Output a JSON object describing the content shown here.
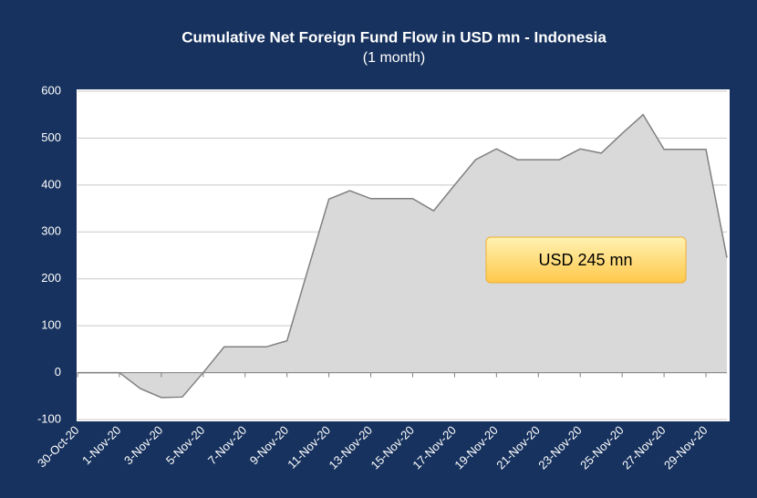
{
  "chart_data": {
    "type": "area",
    "title": "Cumulative Net Foreign Fund Flow in USD mn -  Indonesia",
    "subtitle": "(1 month)",
    "annotation": "USD 245 mn",
    "categories": [
      "30-Oct-20",
      null,
      "1-Nov-20",
      null,
      "3-Nov-20",
      null,
      "5-Nov-20",
      null,
      "7-Nov-20",
      null,
      "9-Nov-20",
      null,
      "11-Nov-20",
      null,
      "13-Nov-20",
      null,
      "15-Nov-20",
      null,
      "17-Nov-20",
      null,
      "19-Nov-20",
      null,
      "21-Nov-20",
      null,
      "23-Nov-20",
      null,
      "25-Nov-20",
      null,
      "27-Nov-20",
      null,
      "29-Nov-20",
      null
    ],
    "values": [
      0,
      0,
      0,
      -34,
      -53,
      -52,
      0,
      55,
      55,
      55,
      68,
      220,
      370,
      388,
      371,
      371,
      371,
      345,
      400,
      454,
      477,
      454,
      454,
      454,
      477,
      468,
      510,
      550,
      476,
      476,
      476,
      245
    ],
    "color": "#d9d9d9",
    "line_color": "#808080",
    "ylim": [
      -100,
      600
    ],
    "yticks": [
      -100,
      0,
      100,
      200,
      300,
      400,
      500,
      600
    ],
    "grid": true
  }
}
